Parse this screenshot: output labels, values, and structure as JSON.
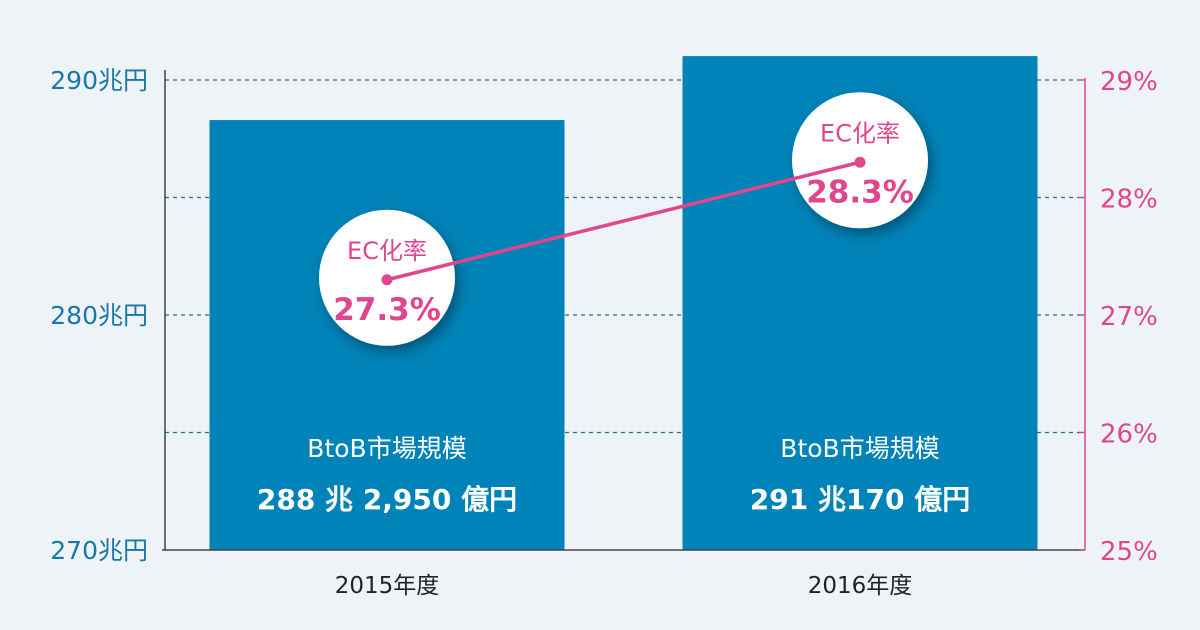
{
  "chart_data": {
    "type": "bar",
    "categories": [
      "2015年度",
      "2016年度"
    ],
    "series": [
      {
        "values": [
          288.295,
          291.017
        ],
        "value_labels": [
          "288 兆 2,950 億円",
          "291 兆170 億円"
        ],
        "bar_label": "BtoB市場規模",
        "axis": "left"
      },
      {
        "type": "line",
        "values": [
          27.3,
          28.3
        ],
        "value_labels": [
          "27.3%",
          "28.3%"
        ],
        "bubble_label": "EC化率",
        "axis": "right"
      }
    ],
    "left_axis": {
      "ylim": [
        270,
        290
      ],
      "ticks": [
        {
          "value": 270,
          "label": "270兆円"
        },
        {
          "value": 280,
          "label": "280兆円"
        },
        {
          "value": 290,
          "label": "290兆円"
        }
      ]
    },
    "right_axis": {
      "ylim": [
        25,
        29
      ],
      "ticks": [
        {
          "value": 25,
          "label": "25%"
        },
        {
          "value": 26,
          "label": "26%"
        },
        {
          "value": 27,
          "label": "27%"
        },
        {
          "value": 28,
          "label": "28%"
        },
        {
          "value": 29,
          "label": "29%"
        }
      ]
    },
    "grid": true
  },
  "colors": {
    "background": "#eef3f8",
    "bar": "#0083b8",
    "left_axis": "#1a78a6",
    "right_axis": "#e0468e",
    "gridline": "#1f6f90",
    "line": "#e0468e",
    "bubble": "#ffffff",
    "bar_text": "#ffffff",
    "category_text": "#222222"
  }
}
